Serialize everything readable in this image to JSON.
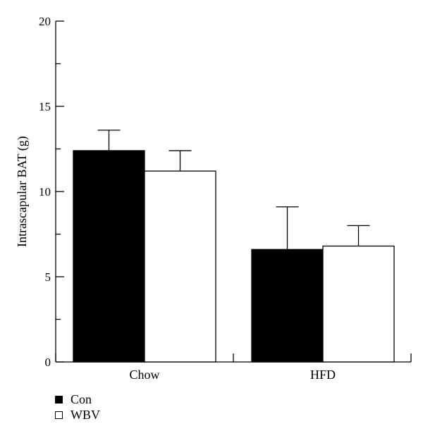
{
  "chart_data": {
    "type": "bar",
    "categories": [
      "Chow",
      "HFD"
    ],
    "series": [
      {
        "name": "Con",
        "values": [
          12.4,
          6.6
        ],
        "errors": [
          1.2,
          2.5
        ],
        "color": "#000000"
      },
      {
        "name": "WBV",
        "values": [
          11.2,
          6.8
        ],
        "errors": [
          1.2,
          1.2
        ],
        "color": "#ffffff"
      }
    ],
    "title": "",
    "xlabel": "",
    "ylabel": "Intrascapular BAT (g)",
    "ylim": [
      0,
      20
    ],
    "yticks": [
      0,
      5,
      10,
      15,
      20
    ],
    "grid": false,
    "legend_position": "bottom-left"
  }
}
